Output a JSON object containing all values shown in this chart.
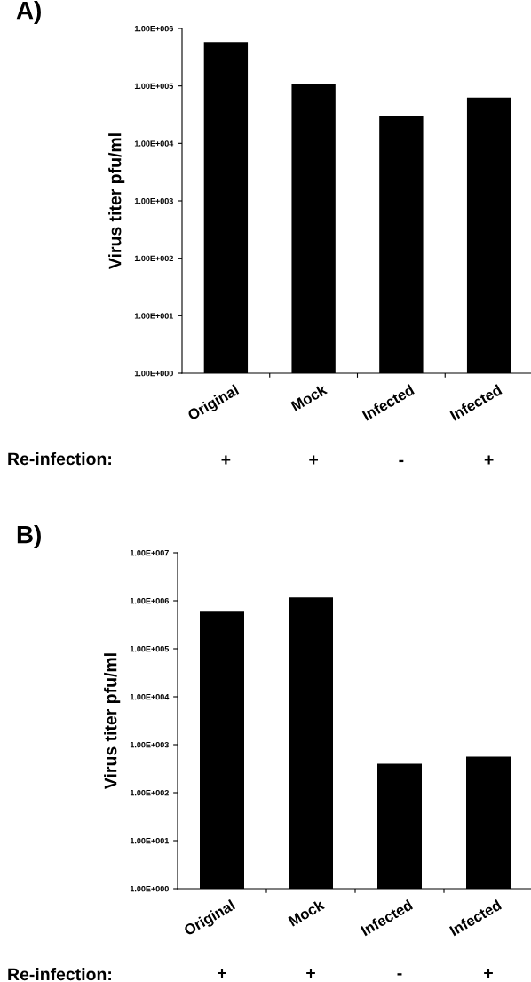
{
  "chart_data": [
    {
      "type": "bar",
      "title": "A)",
      "ylabel": "Virus titer pfu/ml",
      "log": true,
      "categories": [
        "Original",
        "Mock",
        "Infected",
        "Infected"
      ],
      "values": [
        580000,
        108000,
        30000,
        63000
      ],
      "color": "#000000",
      "ylim": [
        1,
        1000000
      ],
      "yticks": [
        {
          "value": 1,
          "label": "1.00E+000"
        },
        {
          "value": 10,
          "label": "1.00E+001"
        },
        {
          "value": 100,
          "label": "1.00E+002"
        },
        {
          "value": 1000,
          "label": "1.00E+003"
        },
        {
          "value": 10000,
          "label": "1.00E+004"
        },
        {
          "value": 100000,
          "label": "1.00E+005"
        },
        {
          "value": 1000000,
          "label": "1.00E+006"
        }
      ],
      "annotations": [
        "Re-infection:",
        "+",
        "+",
        "-",
        "+"
      ]
    },
    {
      "type": "bar",
      "title": "B)",
      "ylabel": "Virus titer pfu/ml",
      "log": true,
      "categories": [
        "Original",
        "Mock",
        "Infected",
        "Infected"
      ],
      "values": [
        590000,
        1170000,
        400,
        560
      ],
      "color": "#000000",
      "ylim": [
        1,
        10000000
      ],
      "yticks": [
        {
          "value": 1,
          "label": "1.00E+000"
        },
        {
          "value": 10,
          "label": "1.00E+001"
        },
        {
          "value": 100,
          "label": "1.00E+002"
        },
        {
          "value": 1000,
          "label": "1.00E+003"
        },
        {
          "value": 10000,
          "label": "1.00E+004"
        },
        {
          "value": 100000,
          "label": "1.00E+005"
        },
        {
          "value": 1000000,
          "label": "1.00E+006"
        },
        {
          "value": 10000000,
          "label": "1.00E+007"
        }
      ],
      "annotations": [
        "Re-infection:",
        "+",
        "+",
        "-",
        "+"
      ]
    }
  ]
}
